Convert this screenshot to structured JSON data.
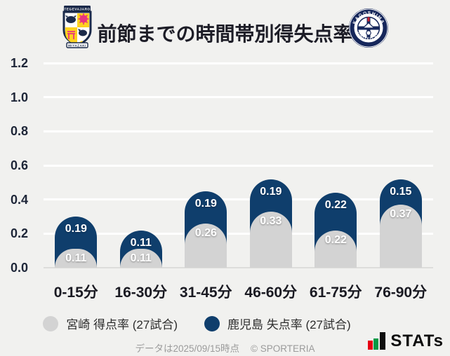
{
  "header": {
    "title": "前節までの時間帯別得失点率",
    "left_logo_name": "テゲバジャーロ宮崎",
    "right_logo_name": "鹿児島ユナイテッドFC"
  },
  "chart_data": {
    "type": "bar",
    "stacked": true,
    "title": "前節までの時間帯別得失点率",
    "xlabel": "",
    "ylabel": "",
    "categories": [
      "0-15分",
      "16-30分",
      "31-45分",
      "46-60分",
      "61-75分",
      "76-90分"
    ],
    "series": [
      {
        "name": "宮崎 得点率 (27試合)",
        "color": "#d3d3d3",
        "values": [
          0.11,
          0.11,
          0.26,
          0.33,
          0.22,
          0.37
        ]
      },
      {
        "name": "鹿児島 失点率 (27試合)",
        "color": "#0f3e6c",
        "values": [
          0.19,
          0.11,
          0.19,
          0.19,
          0.22,
          0.15
        ]
      }
    ],
    "ylim": [
      0,
      1.2
    ],
    "yticks": [
      "1.2",
      "1.0",
      "0.8",
      "0.6",
      "0.4",
      "0.2",
      "0.0"
    ],
    "grid": true,
    "legend_position": "bottom"
  },
  "colors": {
    "background": "#f1f1ef",
    "gridline": "#ffffff",
    "navy": "#0f3e6c",
    "gray": "#d3d3d3",
    "stats_red": "#e60012",
    "stats_green": "#009944"
  },
  "footer": {
    "note": "データは2025/09/15時点",
    "copyright": "© SPORTERIA",
    "brand": "STATs"
  }
}
